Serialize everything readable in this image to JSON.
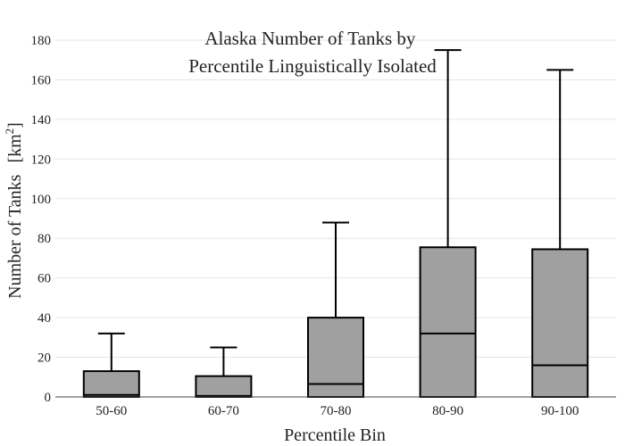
{
  "chart_data": {
    "type": "box",
    "title_lines": [
      "Alaska Number of Tanks by",
      "Percentile Linguistically Isolated"
    ],
    "xlabel": "Percentile Bin",
    "ylabel": "Number of Tanks",
    "ylabel_unit_base": "[km",
    "ylabel_unit_sup": "2",
    "ylabel_unit_close": "]",
    "ylim": [
      0,
      180
    ],
    "yticks": [
      0,
      20,
      40,
      60,
      80,
      100,
      120,
      140,
      160,
      180
    ],
    "grid": true,
    "box_color": "#a0a0a0",
    "categories": [
      "50-60",
      "60-70",
      "70-80",
      "80-90",
      "90-100"
    ],
    "boxes": [
      {
        "min": 0,
        "q1": 0,
        "median": 1,
        "q3": 13,
        "max": 32
      },
      {
        "min": 0,
        "q1": 0,
        "median": 0.5,
        "q3": 10.5,
        "max": 25
      },
      {
        "min": 0,
        "q1": 0,
        "median": 6.5,
        "q3": 40,
        "max": 88
      },
      {
        "min": 0,
        "q1": 0,
        "median": 32,
        "q3": 75.5,
        "max": 175
      },
      {
        "min": 0,
        "q1": 0,
        "median": 16,
        "q3": 74.5,
        "max": 165
      }
    ]
  }
}
